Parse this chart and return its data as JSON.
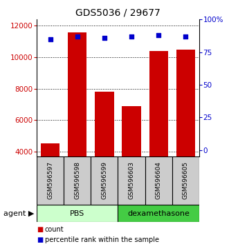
{
  "title": "GDS5036 / 29677",
  "samples": [
    "GSM596597",
    "GSM596598",
    "GSM596599",
    "GSM596603",
    "GSM596604",
    "GSM596605"
  ],
  "counts": [
    4500,
    11600,
    7800,
    6900,
    10400,
    10500
  ],
  "percentiles": [
    85,
    87,
    86,
    87,
    88,
    87
  ],
  "ylim_left": [
    3700,
    12400
  ],
  "ylim_right": [
    -4.6,
    100
  ],
  "bar_color": "#cc0000",
  "dot_color": "#0000cc",
  "yticks_left": [
    4000,
    6000,
    8000,
    10000,
    12000
  ],
  "yticks_right": [
    0,
    25,
    50,
    75,
    100
  ],
  "group_info": [
    {
      "label": "PBS",
      "start": 0,
      "end": 3,
      "facecolor": "#ccffcc",
      "edgecolor": "black"
    },
    {
      "label": "dexamethasone",
      "start": 3,
      "end": 6,
      "facecolor": "#44cc44",
      "edgecolor": "black"
    }
  ],
  "legend_items": [
    {
      "label": "count",
      "color": "#cc0000"
    },
    {
      "label": "percentile rank within the sample",
      "color": "#0000cc"
    }
  ]
}
